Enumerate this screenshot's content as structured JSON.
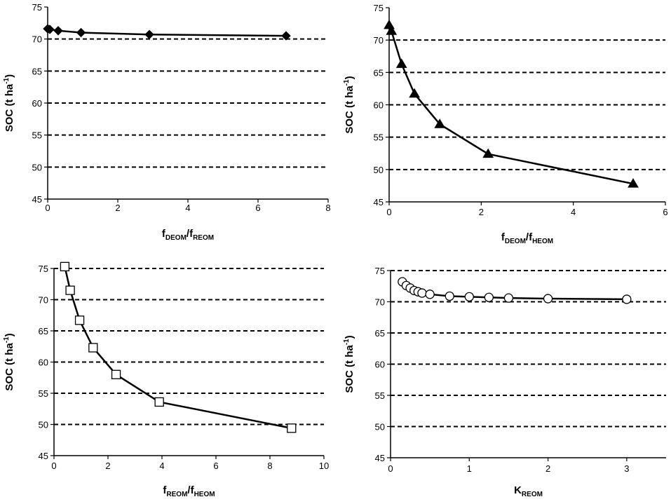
{
  "chart_data": [
    {
      "type": "line",
      "ylabel": {
        "main": "SOC (t ha",
        "sup": "-1",
        "tail": ")"
      },
      "xlabel": [
        {
          "t": "f"
        },
        {
          "t": "DEOM",
          "sub": true
        },
        {
          "t": "/f"
        },
        {
          "t": "REOM",
          "sub": true
        }
      ],
      "xlim": [
        0,
        8
      ],
      "xticks": [
        0,
        2,
        4,
        6,
        8
      ],
      "ylim": [
        45,
        75
      ],
      "yticks": [
        45,
        50,
        55,
        60,
        65,
        70,
        75
      ],
      "gridlines": [
        50,
        55,
        60,
        65,
        70
      ],
      "marker": "diamond",
      "series": [
        {
          "x": [
            0.0,
            0.06,
            0.3,
            0.95,
            2.9,
            6.8
          ],
          "y": [
            71.6,
            71.5,
            71.3,
            71.0,
            70.7,
            70.5
          ]
        }
      ]
    },
    {
      "type": "line",
      "ylabel": {
        "main": "SOC (t ha",
        "sup": "-1",
        "tail": ")"
      },
      "xlabel": [
        {
          "t": "f"
        },
        {
          "t": "DEOM",
          "sub": true
        },
        {
          "t": "/f"
        },
        {
          "t": "HEOM",
          "sub": true
        }
      ],
      "xlim": [
        0,
        6
      ],
      "xticks": [
        0,
        2,
        4,
        6
      ],
      "ylim": [
        45,
        75
      ],
      "yticks": [
        45,
        50,
        55,
        60,
        65,
        70,
        75
      ],
      "gridlines": [
        50,
        55,
        60,
        65,
        70
      ],
      "marker": "triangle",
      "series": [
        {
          "x": [
            0.0,
            0.05,
            0.27,
            0.55,
            1.1,
            2.15,
            5.3
          ],
          "y": [
            72.3,
            71.4,
            66.3,
            61.7,
            57.0,
            52.4,
            47.8
          ]
        }
      ]
    },
    {
      "type": "line",
      "ylabel": {
        "main": "SOC (t ha",
        "sup": "-1",
        "tail": ")"
      },
      "xlabel": [
        {
          "t": "f"
        },
        {
          "t": "REOM",
          "sub": true
        },
        {
          "t": "/f"
        },
        {
          "t": "HEOM",
          "sub": true
        }
      ],
      "xlim": [
        0,
        10
      ],
      "xticks": [
        0,
        2,
        4,
        6,
        8,
        10
      ],
      "ylim": [
        45,
        75
      ],
      "yticks": [
        45,
        50,
        55,
        60,
        65,
        70,
        75
      ],
      "gridlines": [
        50,
        55,
        60,
        65,
        70,
        75
      ],
      "marker": "square",
      "series": [
        {
          "x": [
            0.4,
            0.6,
            0.95,
            1.45,
            2.3,
            3.9,
            8.8
          ],
          "y": [
            75.3,
            71.5,
            66.7,
            62.3,
            58.0,
            53.6,
            49.4
          ]
        }
      ]
    },
    {
      "type": "line",
      "ylabel": {
        "main": "SOC (t ha",
        "sup": "-1",
        "tail": ")"
      },
      "xlabel": [
        {
          "t": "K"
        },
        {
          "t": "REOM",
          "sub": true
        }
      ],
      "xlim": [
        0,
        3.5
      ],
      "xticks": [
        0,
        1,
        2,
        3
      ],
      "ylim": [
        45,
        75
      ],
      "yticks": [
        45,
        50,
        55,
        60,
        65,
        70,
        75
      ],
      "gridlines": [
        50,
        55,
        60,
        65,
        70,
        75
      ],
      "marker": "circle",
      "series": [
        {
          "x": [
            0.15,
            0.2,
            0.25,
            0.3,
            0.35,
            0.4,
            0.5,
            0.75,
            1.0,
            1.25,
            1.5,
            2.0,
            3.0
          ],
          "y": [
            73.2,
            72.6,
            72.2,
            71.8,
            71.6,
            71.4,
            71.2,
            70.9,
            70.8,
            70.7,
            70.6,
            70.5,
            70.4
          ]
        }
      ]
    }
  ]
}
